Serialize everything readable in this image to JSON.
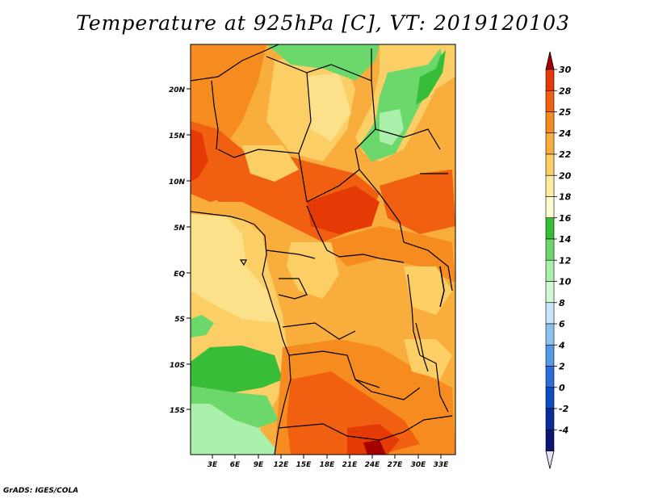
{
  "title": "Temperature at 925hPa [C], VT: 2019120103",
  "footer": "GrADS: IGES/COLA",
  "map": {
    "lat_labels": [
      "20N",
      "15N",
      "10N",
      "5N",
      "EQ",
      "5S",
      "10S",
      "15S"
    ],
    "lon_labels": [
      "3E",
      "6E",
      "9E",
      "12E",
      "15E",
      "18E",
      "21E",
      "24E",
      "27E",
      "30E",
      "33E"
    ]
  },
  "colorbar": {
    "labels": [
      "30",
      "28",
      "25",
      "24",
      "22",
      "20",
      "18",
      "16",
      "14",
      "12",
      "10",
      "8",
      "6",
      "4",
      "2",
      "0",
      "-2",
      "-4"
    ],
    "colors": [
      "#a50000",
      "#e63a06",
      "#f06010",
      "#f68c20",
      "#f8ad3c",
      "#fbcf66",
      "#fdeca2",
      "#fefdd0",
      "#37bd37",
      "#6cd86c",
      "#aaefaa",
      "#d2f7d2",
      "#c6e4fa",
      "#8dc2ee",
      "#5499e2",
      "#2a6ed6",
      "#0d4bc0",
      "#0a2d98",
      "#0a1670",
      "#e2e2f8"
    ]
  }
}
